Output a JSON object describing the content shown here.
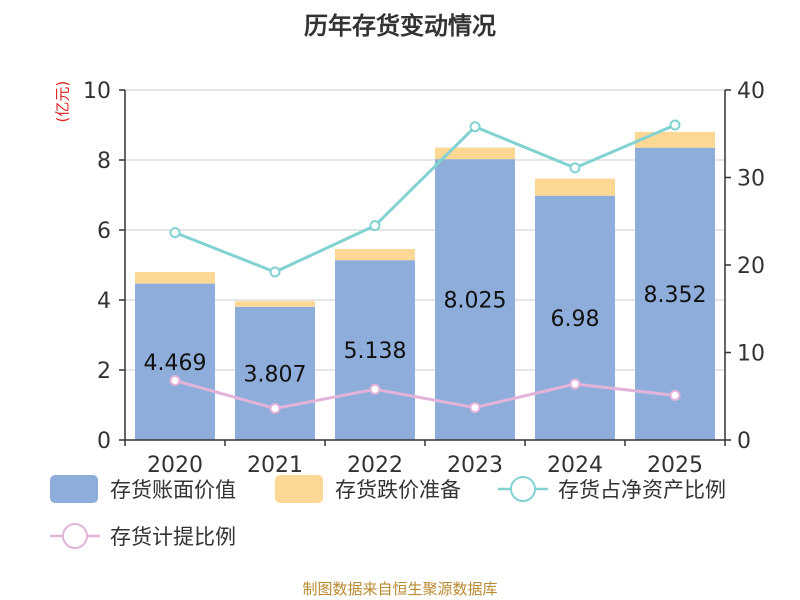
{
  "title": "历年存货变动情况",
  "unit_left": "(亿元)",
  "source": "制图数据来自恒生聚源数据库",
  "colors": {
    "book_value": "#8eadda",
    "impairment": "#fdd894",
    "net_asset_ratio": "#82d2d2",
    "provision_ratio": "#e3b3da",
    "axis": "#333333",
    "grid": "#cccccc"
  },
  "chart_data": {
    "type": "bar",
    "categories": [
      "2020",
      "2021",
      "2022",
      "2023",
      "2024",
      "2025"
    ],
    "series": [
      {
        "name": "存货账面价值",
        "type": "bar",
        "stack": "inventory",
        "axis": "left",
        "values": [
          4.469,
          3.807,
          5.138,
          8.025,
          6.98,
          8.352
        ],
        "labels": [
          "4.469",
          "3.807",
          "5.138",
          "8.025",
          "6.98",
          "8.352"
        ]
      },
      {
        "name": "存货跌价准备",
        "type": "bar",
        "stack": "inventory",
        "axis": "left",
        "values": [
          0.33,
          0.16,
          0.32,
          0.33,
          0.49,
          0.45
        ]
      },
      {
        "name": "存货占净资产比例",
        "type": "line",
        "axis": "right",
        "values": [
          23.7,
          19.2,
          24.5,
          35.8,
          31.1,
          36.0
        ]
      },
      {
        "name": "存货计提比例",
        "type": "line",
        "axis": "right",
        "values": [
          6.8,
          3.6,
          5.8,
          3.7,
          6.4,
          5.1
        ]
      }
    ],
    "y_left": {
      "min": 0,
      "max": 10,
      "ticks": [
        "0",
        "2",
        "4",
        "6",
        "8",
        "10"
      ]
    },
    "y_right": {
      "min": 0,
      "max": 40,
      "ticks": [
        "0",
        "10",
        "20",
        "30",
        "40"
      ]
    },
    "grid": true,
    "legend_position": "bottom"
  }
}
